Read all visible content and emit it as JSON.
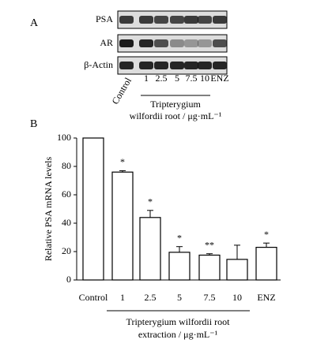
{
  "panel_a": {
    "label": "A",
    "blots": [
      "PSA",
      "AR",
      "β-Actin"
    ],
    "lanes": [
      "Control",
      "1",
      "2.5",
      "5",
      "7.5",
      "10",
      "ENZ"
    ],
    "treatment_label": [
      "Tripterygium",
      "wilfordii root / μg·mL⁻¹"
    ]
  },
  "chart_data": {
    "type": "bar",
    "panel_label": "B",
    "categories": [
      "Control",
      "1",
      "2.5",
      "5",
      "7.5",
      "10",
      "ENZ"
    ],
    "values": [
      100,
      76,
      44,
      19.5,
      17.5,
      14.5,
      23
    ],
    "errors": [
      0,
      1,
      5,
      4,
      1,
      10,
      3
    ],
    "annotations": [
      null,
      "*",
      "*",
      "*",
      "**",
      null,
      "*"
    ],
    "color": "#ffffff",
    "ylim": [
      0,
      100
    ],
    "yticks": [
      0,
      20,
      40,
      60,
      80,
      100
    ],
    "ylabel": "Relative PSA mRNA levels",
    "xlabel": [
      "Tripterygium wilfordii root",
      "extraction / μg·mL⁻¹"
    ]
  }
}
